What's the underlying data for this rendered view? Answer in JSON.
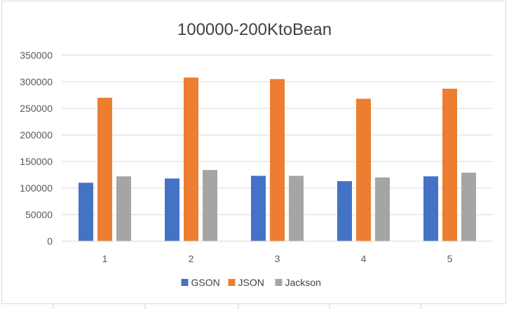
{
  "chart_data": {
    "type": "bar",
    "title": "100000-200KtoBean",
    "xlabel": "",
    "ylabel": "",
    "categories": [
      "1",
      "2",
      "3",
      "4",
      "5"
    ],
    "series": [
      {
        "name": "GSON",
        "color": "#4472C4",
        "values": [
          110000,
          118000,
          123000,
          113000,
          122000
        ]
      },
      {
        "name": "JSON",
        "color": "#ED7D31",
        "values": [
          270000,
          308000,
          305000,
          268000,
          287000
        ]
      },
      {
        "name": "Jackson",
        "color": "#A5A5A5",
        "values": [
          122000,
          134000,
          123000,
          120000,
          129000
        ]
      }
    ],
    "ylim": [
      0,
      350000
    ],
    "yticks": [
      "0",
      "50000",
      "100000",
      "150000",
      "200000",
      "250000",
      "300000",
      "350000"
    ],
    "grid": true,
    "legend_position": "bottom"
  }
}
